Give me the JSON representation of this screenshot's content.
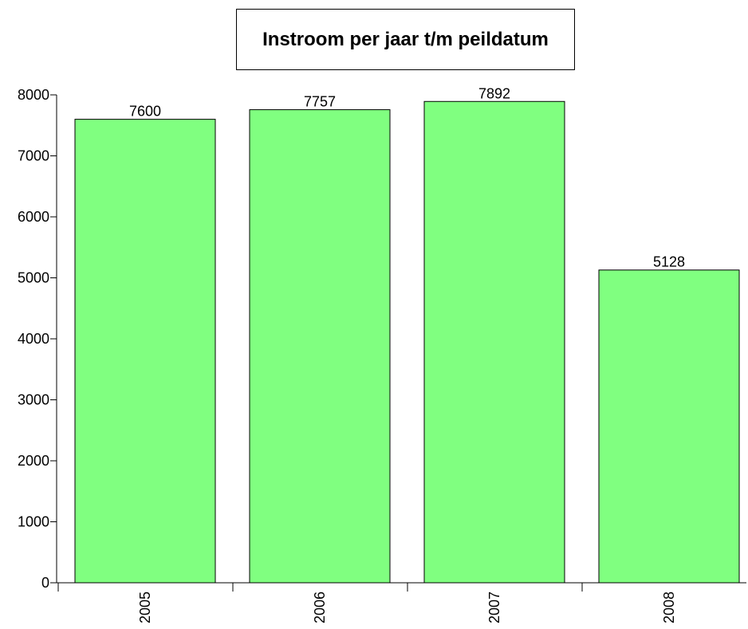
{
  "chart_data": {
    "type": "bar",
    "title": "Instroom per jaar t/m peildatum",
    "xlabel": "",
    "ylabel": "",
    "categories": [
      "2005",
      "2006",
      "2007",
      "2008"
    ],
    "values": [
      7600,
      7757,
      7892,
      5128
    ],
    "data_labels": [
      "7600",
      "7757",
      "7892",
      "5128"
    ],
    "ylim": [
      0,
      8000
    ],
    "yticks": [
      0,
      1000,
      2000,
      3000,
      4000,
      5000,
      6000,
      7000,
      8000
    ],
    "ytick_labels": [
      "0",
      "1000",
      "2000",
      "3000",
      "4000",
      "5000",
      "6000",
      "7000",
      "8000"
    ],
    "grid": false,
    "legend": "none",
    "bar_color": "#80ff80",
    "bar_edge_color": "#000000"
  }
}
